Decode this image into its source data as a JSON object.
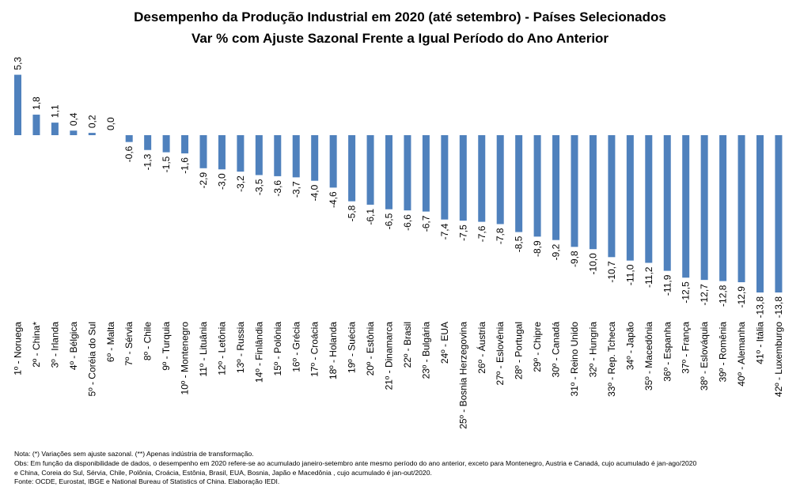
{
  "chart_data": {
    "type": "bar",
    "title": "Desempenho da Produção Industrial em 2020 (até setembro) - Países Selecionados",
    "subtitle": "Var % com Ajuste Sazonal Frente a Igual Período do Ano Anterior",
    "bar_color": "#4F81BD",
    "categories": [
      "1º - Noruega",
      "2º - China*",
      "3º - Irlanda",
      "4º - Bélgica",
      "5º - Coréia do Sul",
      "6º - Malta",
      "7º - Sérvia",
      "8º - Chile",
      "9º - Turquia",
      "10º - Montenegro",
      "11º - Lituânia",
      "12º - Letônia",
      "13º - Russia",
      "14º - Finlândia",
      "15º - Polônia",
      "16º - Grécia",
      "17º - Croácia",
      "18º - Holanda",
      "19º - Suécia",
      "20º - Estônia",
      "21º - Dinamarca",
      "22º - Brasil",
      "23º - Bulgária",
      "24º - EUA",
      "25º - Bosnia Herzegovina",
      "26º - Áustria",
      "27º - Eslovênia",
      "28º - Portugal",
      "29º - Chipre",
      "30º - Canadá",
      "31º - Reino Unido",
      "32º - Hungria",
      "33º - Rep. Tcheca",
      "34º - Japão",
      "35º - Macedônia",
      "36º - Espanha",
      "37º - França",
      "38º - Eslováquia",
      "39º - Romênia",
      "40º - Alemanha",
      "41º - Itália",
      "42º - Luxemburgo"
    ],
    "values": [
      5.3,
      1.8,
      1.1,
      0.4,
      0.2,
      0.0,
      -0.6,
      -1.3,
      -1.5,
      -1.6,
      -2.9,
      -3.0,
      -3.2,
      -3.5,
      -3.6,
      -3.7,
      -4.0,
      -4.6,
      -5.8,
      -6.1,
      -6.5,
      -6.6,
      -6.7,
      -7.4,
      -7.5,
      -7.6,
      -7.8,
      -8.5,
      -8.9,
      -9.2,
      -9.8,
      -10.0,
      -10.7,
      -11.0,
      -11.2,
      -11.9,
      -12.5,
      -12.7,
      -12.8,
      -12.9,
      -13.8,
      -13.8
    ],
    "value_labels": [
      "5,3",
      "1,8",
      "1,1",
      "0,4",
      "0,2",
      "0,0",
      "-0,6",
      "-1,3",
      "-1,5",
      "-1,6",
      "-2,9",
      "-3,0",
      "-3,2",
      "-3,5",
      "-3,6",
      "-3,7",
      "-4,0",
      "-4,6",
      "-5,8",
      "-6,1",
      "-6,5",
      "-6,6",
      "-6,7",
      "-7,4",
      "-7,5",
      "-7,6",
      "-7,8",
      "-8,5",
      "-8,9",
      "-9,2",
      "-9,8",
      "-10,0",
      "-10,7",
      "-11,0",
      "-11,2",
      "-11,9",
      "-12,5",
      "-12,7",
      "-12,8",
      "-12,9",
      "-13,8",
      "-13,8"
    ],
    "ylim": [
      -13.8,
      5.3
    ],
    "grid": false,
    "legend": "none"
  },
  "notes": [
    "Nota: (*) Variações sem ajuste sazonal. (**) Apenas indústria de transformação.",
    "Obs: Em função da disponibilidade de dados, o desempenho em 2020 refere-se ao acumulado janeiro-setembro ante mesmo período do ano anterior, exceto para Montenegro, Austria e Canadá, cujo acumulado é jan-ago/2020",
    "e China, Coreia do Sul, Sérvia, Chile, Polônia, Croácia, Estônia, Brasil, EUA, Bosnia, Japão e Macedônia , cujo acumulado é jan-out/2020.",
    "Fonte: OCDE, Eurostat, IBGE e National Bureau of Statistics of China. Elaboração IEDI."
  ]
}
